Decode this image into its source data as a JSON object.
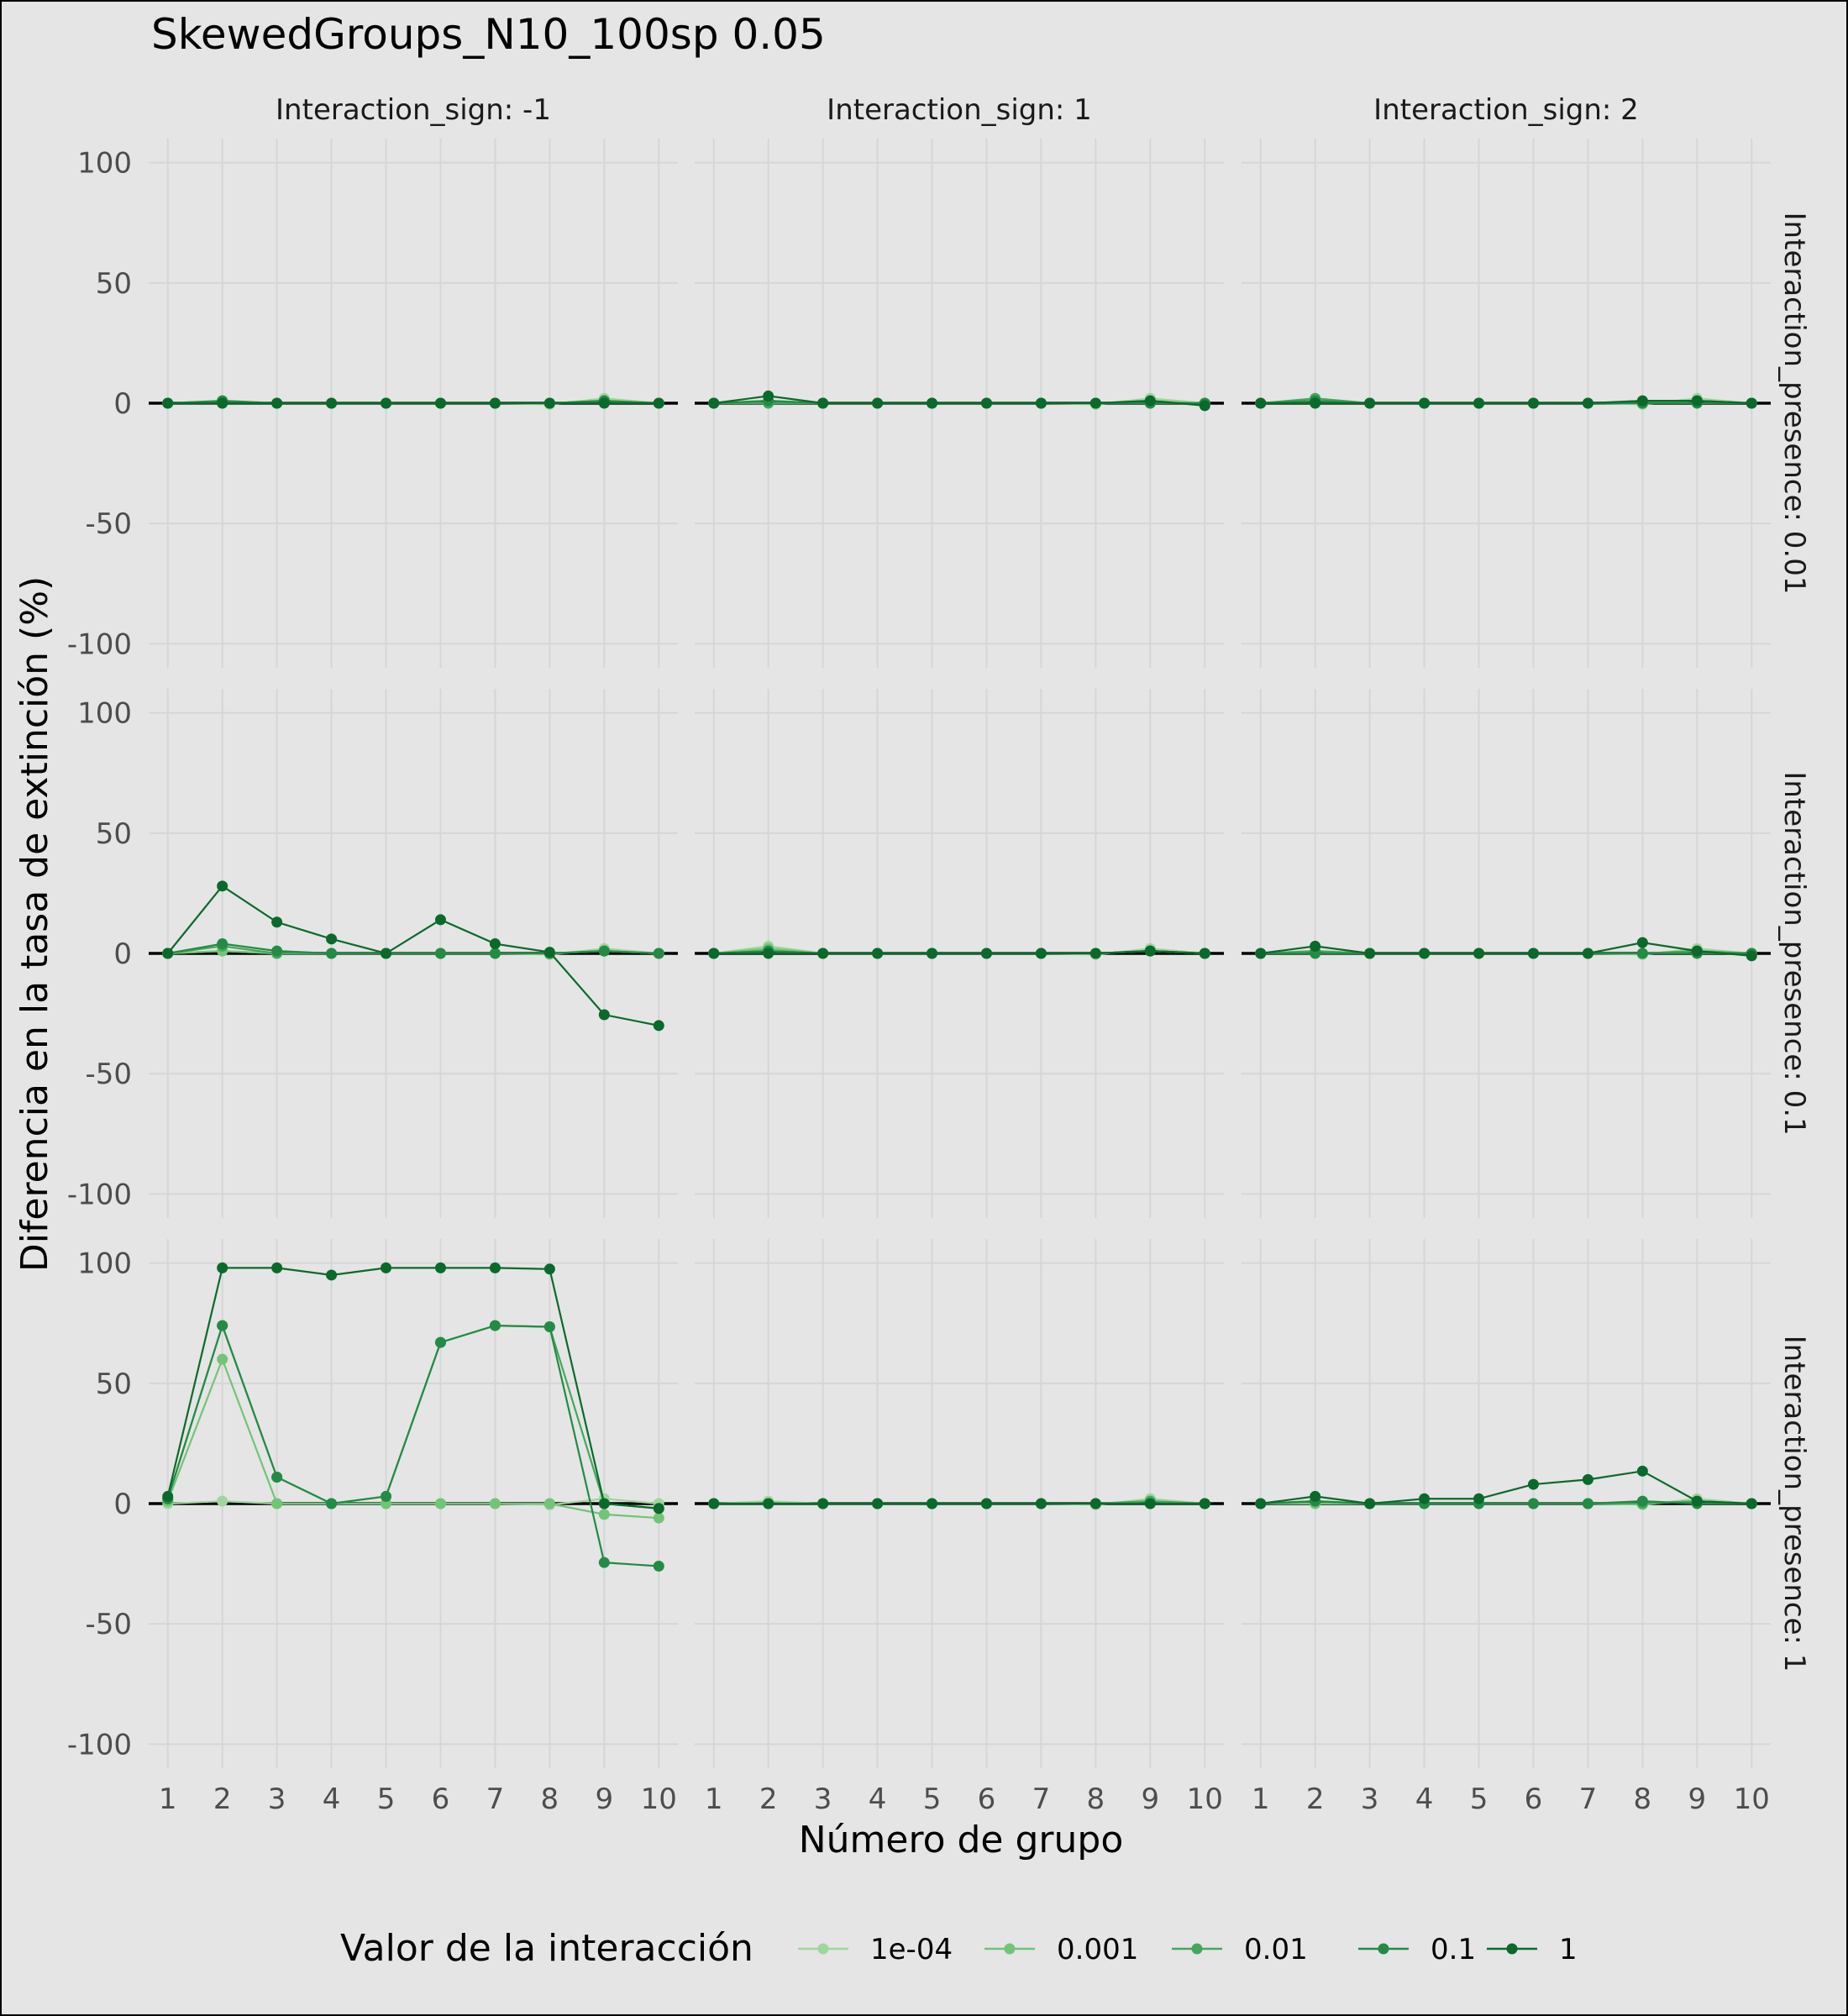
{
  "chart_data": {
    "type": "line",
    "title": "SkewedGroups_N10_100sp 0.05",
    "xlabel": "Número de grupo",
    "ylabel": "Diferencia en la tasa de extinción (%)",
    "x": [
      1,
      2,
      3,
      4,
      5,
      6,
      7,
      8,
      9,
      10
    ],
    "ylim": [
      -110,
      110
    ],
    "yticks": [
      -100,
      -50,
      0,
      50,
      100
    ],
    "grid": true,
    "legend": {
      "title": "Valor de la interacción",
      "position": "bottom",
      "entries": [
        "1e-04",
        "0.001",
        "0.01",
        "0.1",
        "1"
      ]
    },
    "colors": [
      "#9fd69b",
      "#72c476",
      "#44a85c",
      "#238b45",
      "#0a6a2b"
    ],
    "col_facets": [
      "Interaction_sign: -1",
      "Interaction_sign: 1",
      "Interaction_sign: 2"
    ],
    "row_facets": [
      "Interaction_presence: 0.01",
      "Interaction_presence: 0.1",
      "Interaction_presence: 1"
    ],
    "panels": [
      {
        "row": 0,
        "col": 0,
        "series": [
          {
            "name": "1e-04",
            "values": [
              0,
              1,
              0,
              0,
              0,
              0,
              0,
              -0.5,
              2,
              0
            ]
          },
          {
            "name": "0.001",
            "values": [
              0,
              0,
              0,
              0,
              0,
              0,
              0,
              0,
              1,
              0
            ]
          },
          {
            "name": "0.01",
            "values": [
              0,
              0,
              0,
              0,
              0,
              0,
              0,
              0,
              1,
              0
            ]
          },
          {
            "name": "0.1",
            "values": [
              0,
              1,
              0,
              0,
              0,
              0,
              0,
              0,
              1,
              0
            ]
          },
          {
            "name": "1",
            "values": [
              0,
              0,
              0,
              0,
              0,
              0,
              0,
              0,
              0,
              0
            ]
          }
        ]
      },
      {
        "row": 0,
        "col": 1,
        "series": [
          {
            "name": "1e-04",
            "values": [
              0,
              1,
              0,
              0,
              0,
              0,
              0,
              -0.5,
              2,
              0
            ]
          },
          {
            "name": "0.001",
            "values": [
              0,
              0,
              0,
              0,
              0,
              0,
              0,
              0,
              1,
              0
            ]
          },
          {
            "name": "0.01",
            "values": [
              0,
              0,
              0,
              0,
              0,
              0,
              0,
              0,
              0,
              0
            ]
          },
          {
            "name": "0.1",
            "values": [
              0,
              1,
              0,
              0,
              0,
              0,
              0,
              0,
              0,
              0
            ]
          },
          {
            "name": "1",
            "values": [
              0,
              3,
              0,
              0,
              0,
              0,
              0,
              0,
              1,
              -1
            ]
          }
        ]
      },
      {
        "row": 0,
        "col": 2,
        "series": [
          {
            "name": "1e-04",
            "values": [
              0,
              1,
              0,
              0,
              0,
              0,
              0,
              -0.5,
              2,
              0
            ]
          },
          {
            "name": "0.001",
            "values": [
              0,
              0,
              0,
              0,
              0,
              0,
              0,
              0,
              1,
              0
            ]
          },
          {
            "name": "0.01",
            "values": [
              0,
              2,
              0,
              0,
              0,
              0,
              0,
              0,
              1,
              0
            ]
          },
          {
            "name": "0.1",
            "values": [
              0,
              1,
              0,
              0,
              0,
              0,
              0,
              0,
              0,
              0
            ]
          },
          {
            "name": "1",
            "values": [
              0,
              0,
              0,
              0,
              0,
              0,
              0,
              1,
              1,
              0
            ]
          }
        ]
      },
      {
        "row": 1,
        "col": 0,
        "series": [
          {
            "name": "1e-04",
            "values": [
              0,
              1,
              0,
              0,
              0,
              0,
              0,
              -0.5,
              2,
              0
            ]
          },
          {
            "name": "0.001",
            "values": [
              0,
              1,
              0,
              0,
              0,
              0,
              0,
              0,
              1,
              0
            ]
          },
          {
            "name": "0.01",
            "values": [
              0,
              3,
              0,
              0,
              0,
              0,
              0,
              0,
              1,
              0
            ]
          },
          {
            "name": "0.1",
            "values": [
              0,
              4,
              1,
              0,
              0,
              0,
              0,
              0,
              1,
              0
            ]
          },
          {
            "name": "1",
            "values": [
              0,
              28,
              13,
              6,
              0,
              14,
              4,
              0.5,
              -25.5,
              -30
            ]
          }
        ]
      },
      {
        "row": 1,
        "col": 1,
        "series": [
          {
            "name": "1e-04",
            "values": [
              0,
              3,
              0,
              0,
              0,
              0,
              0,
              -0.5,
              2,
              0
            ]
          },
          {
            "name": "0.001",
            "values": [
              0,
              2,
              0,
              0,
              0,
              0,
              0,
              0,
              1,
              0
            ]
          },
          {
            "name": "0.01",
            "values": [
              0,
              1,
              0,
              0,
              0,
              0,
              0,
              0,
              1,
              0
            ]
          },
          {
            "name": "0.1",
            "values": [
              0,
              1,
              0,
              0,
              0,
              0,
              0,
              0,
              1,
              0
            ]
          },
          {
            "name": "1",
            "values": [
              0,
              0,
              0,
              0,
              0,
              0,
              0,
              0,
              1,
              0
            ]
          }
        ]
      },
      {
        "row": 1,
        "col": 2,
        "series": [
          {
            "name": "1e-04",
            "values": [
              0,
              1,
              0,
              0,
              0,
              0,
              0,
              -0.5,
              2,
              0
            ]
          },
          {
            "name": "0.001",
            "values": [
              0,
              0,
              0,
              0,
              0,
              0,
              0,
              0,
              1,
              0
            ]
          },
          {
            "name": "0.01",
            "values": [
              0,
              1,
              0,
              0,
              0,
              0,
              0,
              0,
              1,
              0
            ]
          },
          {
            "name": "0.1",
            "values": [
              0,
              0,
              0,
              0,
              0,
              0,
              0,
              0,
              0,
              0
            ]
          },
          {
            "name": "1",
            "values": [
              0,
              3,
              0,
              0,
              0,
              0,
              0,
              4.5,
              1,
              -1
            ]
          }
        ]
      },
      {
        "row": 2,
        "col": 0,
        "series": [
          {
            "name": "1e-04",
            "values": [
              0,
              1,
              0,
              0,
              0,
              0,
              0,
              -0.5,
              2,
              0
            ]
          },
          {
            "name": "0.001",
            "values": [
              1,
              60,
              0,
              0,
              0,
              0,
              0,
              0,
              -4.5,
              -6
            ]
          },
          {
            "name": "0.01",
            "values": [
              2,
              74,
              11,
              0,
              3,
              67,
              74,
              73.5,
              0,
              -2
            ]
          },
          {
            "name": "0.1",
            "values": [
              2,
              74,
              11,
              0,
              3,
              67,
              74,
              73.5,
              -24.5,
              -26
            ]
          },
          {
            "name": "1",
            "values": [
              3,
              98,
              98,
              95,
              98,
              98,
              98,
              97.5,
              0,
              -2
            ]
          }
        ]
      },
      {
        "row": 2,
        "col": 1,
        "series": [
          {
            "name": "1e-04",
            "values": [
              0,
              1,
              0,
              0,
              0,
              0,
              0,
              -0.5,
              2,
              0
            ]
          },
          {
            "name": "0.001",
            "values": [
              0,
              0,
              0,
              0,
              0,
              0,
              0,
              0,
              1,
              0
            ]
          },
          {
            "name": "0.01",
            "values": [
              0,
              0,
              0,
              0,
              0,
              0,
              0,
              0,
              1,
              0
            ]
          },
          {
            "name": "0.1",
            "values": [
              0,
              0,
              0,
              0,
              0,
              0,
              0,
              0,
              0,
              0
            ]
          },
          {
            "name": "1",
            "values": [
              0,
              0,
              0,
              0,
              0,
              0,
              0,
              0,
              0,
              0
            ]
          }
        ]
      },
      {
        "row": 2,
        "col": 2,
        "series": [
          {
            "name": "1e-04",
            "values": [
              0,
              1,
              0,
              0,
              0,
              0,
              0,
              -0.5,
              2,
              0
            ]
          },
          {
            "name": "0.001",
            "values": [
              0,
              0,
              0,
              0,
              0,
              0,
              0,
              0,
              1,
              0
            ]
          },
          {
            "name": "0.01",
            "values": [
              0,
              1,
              0,
              0,
              0,
              0,
              0,
              0,
              1,
              0
            ]
          },
          {
            "name": "0.1",
            "values": [
              0,
              1,
              0,
              0,
              0,
              0,
              0,
              1,
              0,
              0
            ]
          },
          {
            "name": "1",
            "values": [
              0,
              3,
              0,
              2,
              2,
              8,
              10,
              13.5,
              1,
              0
            ]
          }
        ]
      }
    ]
  }
}
